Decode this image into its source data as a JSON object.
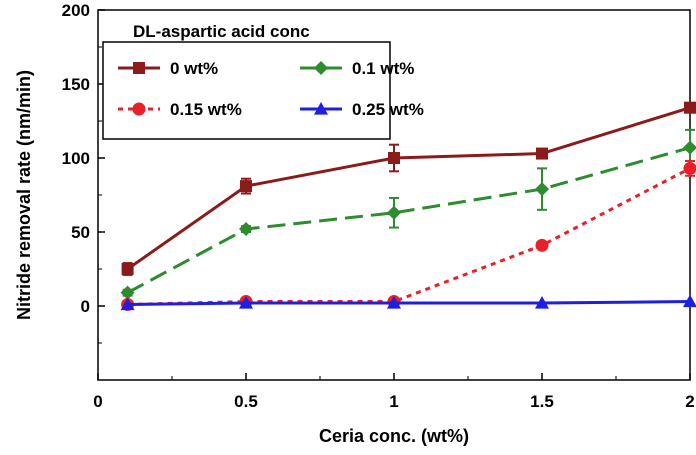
{
  "chart_data": {
    "type": "line",
    "title": "",
    "xlabel": "Ceria conc. (wt%)",
    "ylabel": "Nitride removal rate (nm/min)",
    "xlim": [
      0,
      2
    ],
    "ylim": [
      -50,
      200
    ],
    "x_ticks": [
      0,
      0.5,
      1,
      1.5,
      2
    ],
    "x_tick_labels": [
      "0",
      "0.5",
      "1",
      "1.5",
      "2"
    ],
    "y_ticks": [
      0,
      50,
      100,
      150,
      200
    ],
    "y_tick_labels": [
      "0",
      "50",
      "100",
      "150",
      "200"
    ],
    "grid": false,
    "legend_placement": "top-left",
    "legend_title": "DL-aspartic acid conc",
    "x": [
      0.1,
      0.5,
      1,
      1.5,
      2
    ],
    "series": [
      {
        "name": "0 wt%",
        "values": [
          25,
          81,
          100,
          103,
          134
        ],
        "errors": [
          4,
          5,
          9,
          3,
          3
        ],
        "color": "#8b1a1a",
        "marker": "square",
        "line_style": "solid"
      },
      {
        "name": "0.1 wt%",
        "values": [
          9,
          52,
          63,
          79,
          107
        ],
        "errors": [
          2,
          2,
          10,
          14,
          12
        ],
        "color": "#2e8b2e",
        "marker": "diamond",
        "line_style": "dashed"
      },
      {
        "name": "0.15 wt%",
        "values": [
          1,
          3,
          3,
          41,
          93
        ],
        "errors": [
          0,
          0,
          0,
          0,
          5
        ],
        "color": "#e8202a",
        "marker": "circle",
        "line_style": "dotted"
      },
      {
        "name": "0.25 wt%",
        "values": [
          1,
          2,
          2,
          2,
          3
        ],
        "errors": [
          0,
          0,
          0,
          0,
          0
        ],
        "color": "#1f1fe0",
        "marker": "triangle",
        "line_style": "solid"
      }
    ]
  }
}
